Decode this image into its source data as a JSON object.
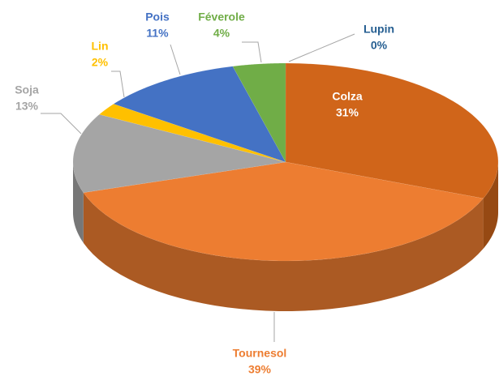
{
  "chart_data": {
    "type": "pie",
    "categories": [
      "Colza",
      "Tournesol",
      "Soja",
      "Lin",
      "Pois",
      "Féverole",
      "Lupin"
    ],
    "values": [
      31,
      39,
      13,
      2,
      11,
      4,
      0
    ],
    "value_labels": [
      "31%",
      "39%",
      "13%",
      "2%",
      "11%",
      "4%",
      "0%"
    ],
    "colors": [
      "#d0651a",
      "#ed7d31",
      "#a5a5a5",
      "#ffc000",
      "#4472c4",
      "#70ad47",
      "#255e91"
    ]
  }
}
